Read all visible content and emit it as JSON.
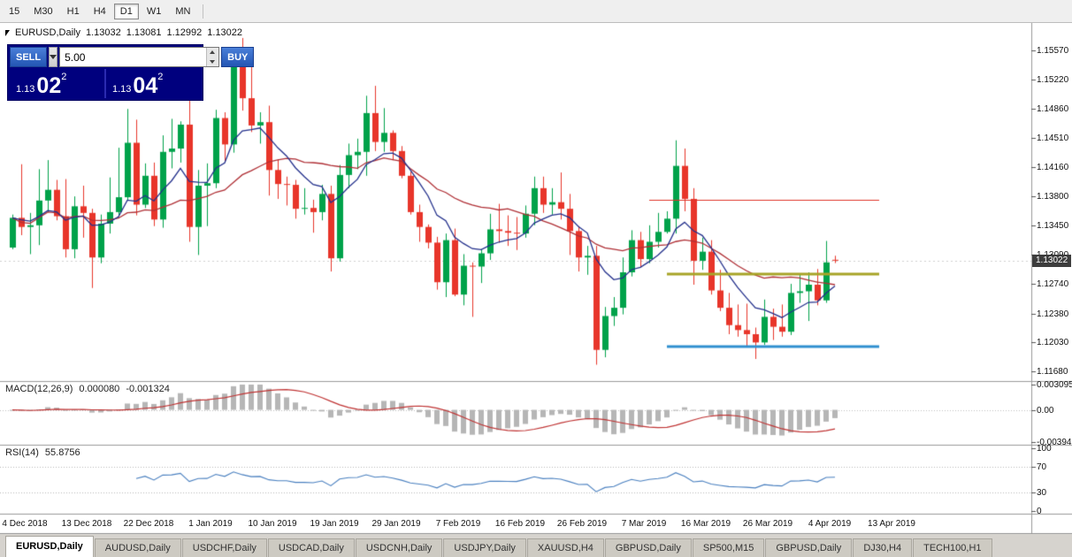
{
  "toolbar": {
    "timeframes": [
      {
        "label": "15",
        "active": false
      },
      {
        "label": "M30",
        "active": false
      },
      {
        "label": "H1",
        "active": false
      },
      {
        "label": "H4",
        "active": false
      },
      {
        "label": "D1",
        "active": true
      },
      {
        "label": "W1",
        "active": false
      },
      {
        "label": "MN",
        "active": false
      }
    ]
  },
  "chart_header": {
    "symbol": "EURUSD,Daily",
    "open": "1.13032",
    "high": "1.13081",
    "low": "1.12992",
    "close": "1.13022"
  },
  "trade_panel": {
    "sell_label": "SELL",
    "buy_label": "BUY",
    "volume": "5.00",
    "bid_prefix": "1.13",
    "bid_big": "02",
    "bid_sup": "2",
    "ask_prefix": "1.13",
    "ask_big": "04",
    "ask_sup": "2"
  },
  "price_scale": {
    "ticks": [
      "1.15570",
      "1.15220",
      "1.14860",
      "1.14510",
      "1.14160",
      "1.13800",
      "1.13450",
      "1.13090",
      "1.12740",
      "1.12380",
      "1.12030",
      "1.11680"
    ],
    "current": "1.13022"
  },
  "macd_panel": {
    "title": "MACD(12,26,9)",
    "value": "0.000080",
    "signal": "-0.001324",
    "scale_top": "0.003095",
    "scale_mid": "0.00",
    "scale_bottom": "-0.003947"
  },
  "rsi_panel": {
    "title": "RSI(14)",
    "value": "55.8756",
    "scale": [
      "100",
      "70",
      "30",
      "0"
    ]
  },
  "tabs": {
    "items": [
      {
        "label": "EURUSD,Daily",
        "active": true
      },
      {
        "label": "AUDUSD,Daily",
        "active": false
      },
      {
        "label": "USDCHF,Daily",
        "active": false
      },
      {
        "label": "USDCAD,Daily",
        "active": false
      },
      {
        "label": "USDCNH,Daily",
        "active": false
      },
      {
        "label": "USDJPY,Daily",
        "active": false
      },
      {
        "label": "XAUUSD,H4",
        "active": false
      },
      {
        "label": "GBPUSD,Daily",
        "active": false
      },
      {
        "label": "SP500,M15",
        "active": false
      },
      {
        "label": "GBPUSD,Daily",
        "active": false
      },
      {
        "label": "DJ30,H4",
        "active": false
      },
      {
        "label": "TECH100,H1",
        "active": false
      }
    ]
  },
  "chart_data": {
    "type": "candlestick",
    "symbol": "EURUSD",
    "timeframe": "Daily",
    "title": "EURUSD,Daily",
    "y_range": {
      "min": 1.11562,
      "max": 1.15902
    },
    "y_ticks": [
      1.1557,
      1.1522,
      1.1486,
      1.1451,
      1.1416,
      1.138,
      1.1345,
      1.1309,
      1.1274,
      1.1238,
      1.1203,
      1.1168
    ],
    "x_labels": [
      "4 Dec 2018",
      "13 Dec 2018",
      "22 Dec 2018",
      "1 Jan 2019",
      "10 Jan 2019",
      "19 Jan 2019",
      "29 Jan 2019",
      "7 Feb 2019",
      "16 Feb 2019",
      "26 Feb 2019",
      "7 Mar 2019",
      "16 Mar 2019",
      "26 Mar 2019",
      "4 Apr 2019",
      "13 Apr 2019"
    ],
    "bid_price": 1.13022,
    "ohlc": [
      [
        1.1318,
        1.1358,
        1.1316,
        1.1354
      ],
      [
        1.1354,
        1.1419,
        1.1333,
        1.1343
      ],
      [
        1.1343,
        1.136,
        1.131,
        1.1345
      ],
      [
        1.1345,
        1.1413,
        1.1321,
        1.1375
      ],
      [
        1.1375,
        1.1424,
        1.1361,
        1.1388
      ],
      [
        1.1388,
        1.14,
        1.1351,
        1.1356
      ],
      [
        1.1356,
        1.1401,
        1.1306,
        1.1316
      ],
      [
        1.1316,
        1.138,
        1.1305,
        1.1368
      ],
      [
        1.1368,
        1.1393,
        1.133,
        1.136
      ],
      [
        1.136,
        1.1365,
        1.1269,
        1.1306
      ],
      [
        1.1306,
        1.1358,
        1.1299,
        1.1347
      ],
      [
        1.1347,
        1.1403,
        1.1335,
        1.1361
      ],
      [
        1.1361,
        1.1439,
        1.1355,
        1.1379
      ],
      [
        1.1379,
        1.1486,
        1.1375,
        1.1445
      ],
      [
        1.1445,
        1.1473,
        1.1357,
        1.137
      ],
      [
        1.137,
        1.142,
        1.1366,
        1.1405
      ],
      [
        1.1405,
        1.1421,
        1.1344,
        1.1352
      ],
      [
        1.1352,
        1.1454,
        1.1342,
        1.1434
      ],
      [
        1.1434,
        1.1474,
        1.1414,
        1.1438
      ],
      [
        1.1438,
        1.1471,
        1.1421,
        1.1467
      ],
      [
        1.1467,
        1.1497,
        1.1325,
        1.1343
      ],
      [
        1.1343,
        1.1412,
        1.1309,
        1.1393
      ],
      [
        1.1393,
        1.142,
        1.1344,
        1.1396
      ],
      [
        1.1396,
        1.1485,
        1.139,
        1.1475
      ],
      [
        1.1475,
        1.1482,
        1.1422,
        1.1443
      ],
      [
        1.1443,
        1.156,
        1.1433,
        1.1544
      ],
      [
        1.1544,
        1.1572,
        1.1484,
        1.1499
      ],
      [
        1.1499,
        1.1541,
        1.1458,
        1.1466
      ],
      [
        1.1466,
        1.1482,
        1.1444,
        1.147
      ],
      [
        1.147,
        1.149,
        1.1381,
        1.1412
      ],
      [
        1.1412,
        1.1425,
        1.1377,
        1.1395
      ],
      [
        1.1395,
        1.1404,
        1.1369,
        1.1394
      ],
      [
        1.1394,
        1.14,
        1.1353,
        1.1365
      ],
      [
        1.1365,
        1.139,
        1.1358,
        1.1366
      ],
      [
        1.1366,
        1.1376,
        1.1336,
        1.1361
      ],
      [
        1.1361,
        1.1394,
        1.1351,
        1.1383
      ],
      [
        1.1383,
        1.1393,
        1.1289,
        1.1305
      ],
      [
        1.1305,
        1.1418,
        1.1301,
        1.1406
      ],
      [
        1.1406,
        1.1444,
        1.139,
        1.143
      ],
      [
        1.143,
        1.145,
        1.1413,
        1.1434
      ],
      [
        1.1434,
        1.1502,
        1.1405,
        1.1481
      ],
      [
        1.1481,
        1.1514,
        1.1435,
        1.1446
      ],
      [
        1.1446,
        1.1487,
        1.1434,
        1.1457
      ],
      [
        1.1457,
        1.146,
        1.1424,
        1.1435
      ],
      [
        1.1435,
        1.1441,
        1.1402,
        1.1405
      ],
      [
        1.1405,
        1.141,
        1.1358,
        1.1361
      ],
      [
        1.1361,
        1.137,
        1.1325,
        1.1343
      ],
      [
        1.1343,
        1.1346,
        1.1317,
        1.1324
      ],
      [
        1.1324,
        1.1331,
        1.1267,
        1.1276
      ],
      [
        1.1276,
        1.1335,
        1.1258,
        1.1327
      ],
      [
        1.1327,
        1.1341,
        1.1259,
        1.1261
      ],
      [
        1.1261,
        1.131,
        1.1248,
        1.1296
      ],
      [
        1.1296,
        1.13,
        1.1234,
        1.1295
      ],
      [
        1.1295,
        1.1316,
        1.1275,
        1.1311
      ],
      [
        1.1311,
        1.1359,
        1.1303,
        1.134
      ],
      [
        1.134,
        1.1371,
        1.1324,
        1.1338
      ],
      [
        1.1338,
        1.1357,
        1.132,
        1.1336
      ],
      [
        1.1336,
        1.1355,
        1.1315,
        1.1335
      ],
      [
        1.1335,
        1.1369,
        1.133,
        1.1359
      ],
      [
        1.1359,
        1.1404,
        1.1345,
        1.139
      ],
      [
        1.139,
        1.1404,
        1.136,
        1.137
      ],
      [
        1.137,
        1.139,
        1.1358,
        1.1373
      ],
      [
        1.1373,
        1.1409,
        1.1352,
        1.1365
      ],
      [
        1.1365,
        1.1383,
        1.1309,
        1.1338
      ],
      [
        1.1338,
        1.1344,
        1.1289,
        1.1306
      ],
      [
        1.1306,
        1.132,
        1.1285,
        1.1308
      ],
      [
        1.1308,
        1.132,
        1.1176,
        1.1194
      ],
      [
        1.1194,
        1.1246,
        1.1185,
        1.1235
      ],
      [
        1.1235,
        1.1258,
        1.1223,
        1.1245
      ],
      [
        1.1245,
        1.1306,
        1.1237,
        1.1288
      ],
      [
        1.1288,
        1.1339,
        1.1283,
        1.1327
      ],
      [
        1.1327,
        1.1337,
        1.1294,
        1.1304
      ],
      [
        1.1304,
        1.1345,
        1.1299,
        1.1325
      ],
      [
        1.1325,
        1.136,
        1.1318,
        1.1337
      ],
      [
        1.1337,
        1.1362,
        1.1335,
        1.1353
      ],
      [
        1.1353,
        1.1448,
        1.1335,
        1.1417
      ],
      [
        1.1417,
        1.1438,
        1.1362,
        1.1377
      ],
      [
        1.1377,
        1.139,
        1.1273,
        1.1302
      ],
      [
        1.1302,
        1.133,
        1.1291,
        1.1313
      ],
      [
        1.1313,
        1.1327,
        1.1261,
        1.1266
      ],
      [
        1.1266,
        1.1291,
        1.1241,
        1.1245
      ],
      [
        1.1245,
        1.1263,
        1.1213,
        1.1224
      ],
      [
        1.1224,
        1.1249,
        1.121,
        1.1218
      ],
      [
        1.1218,
        1.125,
        1.1199,
        1.1213
      ],
      [
        1.1213,
        1.1221,
        1.1183,
        1.1203
      ],
      [
        1.1203,
        1.1255,
        1.12,
        1.1234
      ],
      [
        1.1234,
        1.1244,
        1.1206,
        1.1222
      ],
      [
        1.1222,
        1.1249,
        1.121,
        1.1216
      ],
      [
        1.1216,
        1.1274,
        1.1212,
        1.1263
      ],
      [
        1.1263,
        1.1285,
        1.1251,
        1.1265
      ],
      [
        1.1265,
        1.1288,
        1.1229,
        1.1273
      ],
      [
        1.1273,
        1.1292,
        1.1248,
        1.1254
      ],
      [
        1.1254,
        1.1326,
        1.1251,
        1.13
      ],
      [
        1.13032,
        1.13081,
        1.12992,
        1.13022
      ]
    ],
    "colors": {
      "up": "#00a24a",
      "down": "#e8352a",
      "ma_fast": "#23308c",
      "ma_slow": "#b03036",
      "macd_hist": "#b6b6b6",
      "macd_signal": "#c03434",
      "rsi": "#4a80c0",
      "hline_red": "#e03428",
      "hline_olive": "#a8a428",
      "hline_blue": "#2f8fd0"
    },
    "indicators": {
      "ma_fast": {
        "type": "ema",
        "period": 8
      },
      "ma_slow": {
        "type": "sma",
        "period": 20
      },
      "macd": {
        "fast": 12,
        "slow": 26,
        "signal": 9,
        "current": 8e-05,
        "current_signal": -0.001324
      },
      "rsi": {
        "period": 14,
        "current": 55.8756,
        "levels": [
          70,
          30
        ]
      }
    },
    "overlays": [
      {
        "type": "hline",
        "price": 1.1376,
        "from_index": 72,
        "to_index": 98,
        "color_key": "hline_red",
        "width": 1
      },
      {
        "type": "hline",
        "price": 1.1286,
        "from_index": 74,
        "to_index": 98,
        "color_key": "hline_olive",
        "width": 3
      },
      {
        "type": "hline",
        "price": 1.1198,
        "from_index": 74,
        "to_index": 98,
        "color_key": "hline_blue",
        "width": 3
      }
    ],
    "macd_scale": {
      "max": 0.003095,
      "min": -0.003947
    }
  }
}
